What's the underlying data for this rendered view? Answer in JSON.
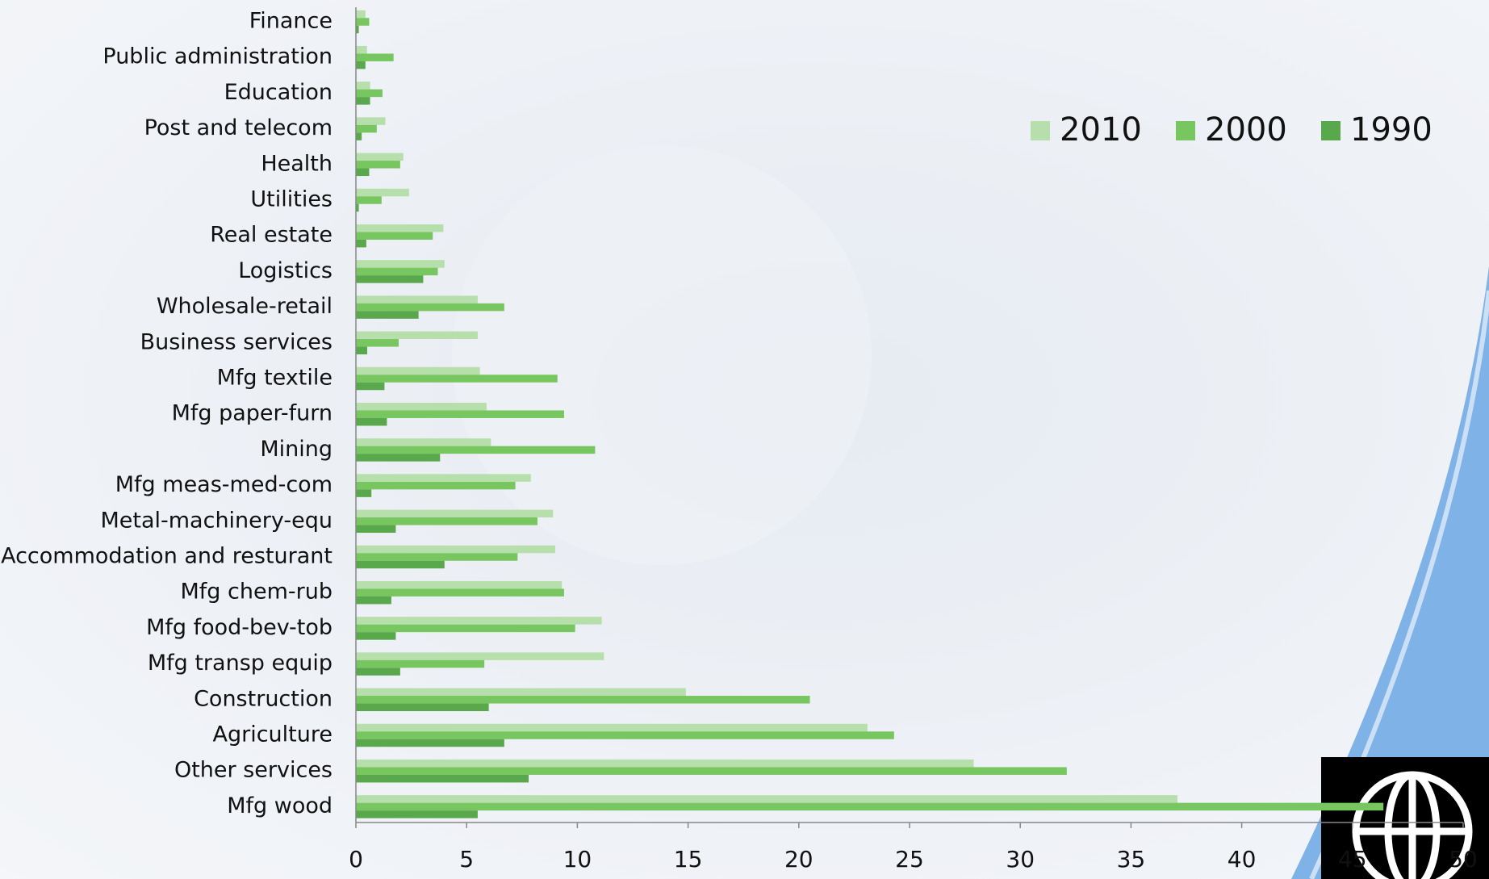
{
  "chart_data": {
    "type": "bar",
    "orientation": "horizontal",
    "categories": [
      "Finance",
      "Public administration",
      "Education",
      "Post and telecom",
      "Health",
      "Utilities",
      "Real estate",
      "Logistics",
      "Wholesale-retail",
      "Business services",
      "Mfg textile",
      "Mfg paper-furn",
      "Mining",
      "Mfg meas-med-com",
      "Metal-machinery-equ",
      "Accommodation and resturant",
      "Mfg chem-rub",
      "Mfg food-bev-tob",
      "Mfg transp equip",
      "Construction",
      "Agriculture",
      "Other services",
      "Mfg wood"
    ],
    "series": [
      {
        "name": "2010",
        "color": "#b7dfac",
        "values": [
          0.43,
          0.5,
          0.64,
          1.33,
          2.14,
          2.4,
          3.95,
          4.0,
          5.5,
          5.5,
          5.6,
          5.9,
          6.1,
          7.9,
          8.9,
          9.0,
          9.3,
          11.1,
          11.2,
          14.9,
          23.1,
          27.9,
          37.1
        ]
      },
      {
        "name": "2000",
        "color": "#77c660",
        "values": [
          0.6,
          1.7,
          1.2,
          0.94,
          2.0,
          1.16,
          3.47,
          3.7,
          6.7,
          1.93,
          9.1,
          9.4,
          10.8,
          7.2,
          8.2,
          7.3,
          9.4,
          9.9,
          5.8,
          20.5,
          24.3,
          32.1,
          46.4
        ]
      },
      {
        "name": "1990",
        "color": "#5aa84c",
        "values": [
          0.13,
          0.43,
          0.64,
          0.26,
          0.6,
          0.13,
          0.47,
          3.04,
          2.83,
          0.51,
          1.29,
          1.4,
          3.8,
          0.7,
          1.8,
          4.0,
          1.6,
          1.8,
          2.0,
          6.0,
          6.7,
          7.8,
          5.5
        ]
      }
    ],
    "xlim": [
      0,
      50
    ],
    "xticks": [
      0,
      5,
      10,
      15,
      20,
      25,
      30,
      35,
      40,
      45,
      50
    ],
    "grid": false,
    "legend": "top-right"
  }
}
